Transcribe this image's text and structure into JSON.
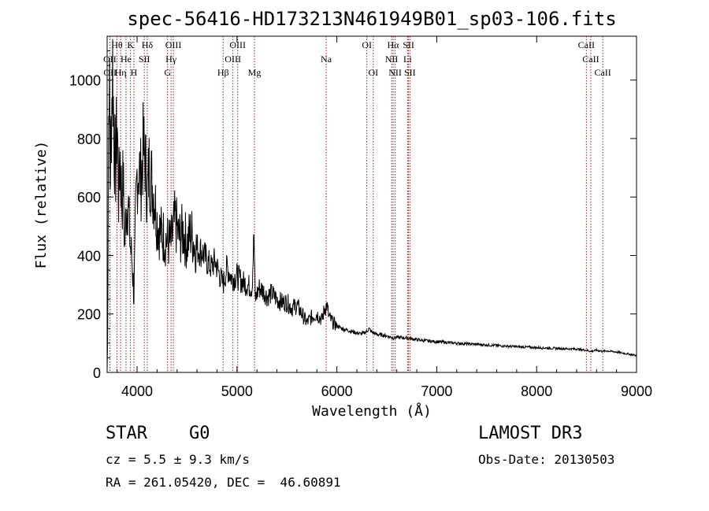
{
  "chart_data": {
    "type": "line",
    "title": "spec-56416-HD173213N461949B01_sp03-106.fits",
    "xlabel": "Wavelength (Å)",
    "ylabel": "Flux (relative)",
    "xlim": [
      3700,
      9000
    ],
    "ylim": [
      0,
      1150
    ],
    "x_ticks": [
      4000,
      5000,
      6000,
      7000,
      8000,
      9000
    ],
    "y_ticks": [
      0,
      200,
      400,
      600,
      800,
      1000
    ],
    "series": [
      {
        "name": "spectrum",
        "points": [
          [
            3700,
            0
          ],
          [
            3705,
            120
          ],
          [
            3712,
            700
          ],
          [
            3720,
            1050
          ],
          [
            3730,
            650
          ],
          [
            3740,
            820
          ],
          [
            3755,
            1060
          ],
          [
            3770,
            780
          ],
          [
            3785,
            700
          ],
          [
            3800,
            870
          ],
          [
            3815,
            600
          ],
          [
            3830,
            740
          ],
          [
            3850,
            560
          ],
          [
            3860,
            680
          ],
          [
            3875,
            420
          ],
          [
            3890,
            560
          ],
          [
            3910,
            590
          ],
          [
            3930,
            440
          ],
          [
            3950,
            380
          ],
          [
            3968,
            260
          ],
          [
            3985,
            520
          ],
          [
            4000,
            680
          ],
          [
            4020,
            700
          ],
          [
            4040,
            660
          ],
          [
            4060,
            760
          ],
          [
            4080,
            740
          ],
          [
            4102,
            600
          ],
          [
            4120,
            700
          ],
          [
            4150,
            650
          ],
          [
            4180,
            580
          ],
          [
            4200,
            520
          ],
          [
            4230,
            480
          ],
          [
            4260,
            470
          ],
          [
            4300,
            450
          ],
          [
            4340,
            440
          ],
          [
            4380,
            520
          ],
          [
            4420,
            460
          ],
          [
            4460,
            480
          ],
          [
            4500,
            440
          ],
          [
            4540,
            480
          ],
          [
            4580,
            430
          ],
          [
            4620,
            420
          ],
          [
            4660,
            410
          ],
          [
            4700,
            380
          ],
          [
            4740,
            360
          ],
          [
            4780,
            380
          ],
          [
            4820,
            340
          ],
          [
            4861,
            300
          ],
          [
            4900,
            360
          ],
          [
            4950,
            320
          ],
          [
            5000,
            330
          ],
          [
            5050,
            310
          ],
          [
            5100,
            300
          ],
          [
            5150,
            290
          ],
          [
            5170,
            470
          ],
          [
            5183,
            250
          ],
          [
            5220,
            290
          ],
          [
            5260,
            280
          ],
          [
            5300,
            260
          ],
          [
            5350,
            270
          ],
          [
            5400,
            250
          ],
          [
            5450,
            240
          ],
          [
            5500,
            240
          ],
          [
            5550,
            220
          ],
          [
            5600,
            230
          ],
          [
            5650,
            200
          ],
          [
            5700,
            170
          ],
          [
            5750,
            190
          ],
          [
            5800,
            200
          ],
          [
            5850,
            180
          ],
          [
            5880,
            220
          ],
          [
            5900,
            230
          ],
          [
            5920,
            190
          ],
          [
            5960,
            170
          ],
          [
            6000,
            160
          ],
          [
            6050,
            150
          ],
          [
            6100,
            145
          ],
          [
            6150,
            140
          ],
          [
            6200,
            135
          ],
          [
            6250,
            132
          ],
          [
            6300,
            140
          ],
          [
            6320,
            150
          ],
          [
            6350,
            138
          ],
          [
            6400,
            130
          ],
          [
            6450,
            128
          ],
          [
            6500,
            125
          ],
          [
            6563,
            118
          ],
          [
            6600,
            120
          ],
          [
            6700,
            118
          ],
          [
            6800,
            112
          ],
          [
            6900,
            108
          ],
          [
            7000,
            105
          ],
          [
            7200,
            100
          ],
          [
            7400,
            96
          ],
          [
            7600,
            92
          ],
          [
            7800,
            88
          ],
          [
            8000,
            85
          ],
          [
            8200,
            82
          ],
          [
            8400,
            80
          ],
          [
            8498,
            76
          ],
          [
            8542,
            72
          ],
          [
            8600,
            76
          ],
          [
            8662,
            72
          ],
          [
            8700,
            74
          ],
          [
            8800,
            70
          ],
          [
            8900,
            64
          ],
          [
            9000,
            58
          ]
        ]
      }
    ],
    "spectral_lines": [
      {
        "name": "Hθ",
        "wavelength": 3798,
        "row": 0
      },
      {
        "name": "K",
        "wavelength": 3934,
        "row": 0
      },
      {
        "name": "Hδ",
        "wavelength": 4102,
        "row": 0
      },
      {
        "name": "OIII",
        "wavelength": 4363,
        "row": 0
      },
      {
        "name": "OIII",
        "wavelength": 5007,
        "row": 0
      },
      {
        "name": "OI",
        "wavelength": 6300,
        "row": 0
      },
      {
        "name": "Hα",
        "wavelength": 6563,
        "row": 0
      },
      {
        "name": "SII",
        "wavelength": 6717,
        "row": 0
      },
      {
        "name": "CaII",
        "wavelength": 8498,
        "row": 0
      },
      {
        "name": "OII",
        "wavelength": 3727,
        "row": 1
      },
      {
        "name": "He",
        "wavelength": 3889,
        "row": 1
      },
      {
        "name": "SII",
        "wavelength": 4072,
        "row": 1
      },
      {
        "name": "Hγ",
        "wavelength": 4340,
        "row": 1
      },
      {
        "name": "OIII",
        "wavelength": 4959,
        "row": 1
      },
      {
        "name": "Na",
        "wavelength": 5893,
        "row": 1
      },
      {
        "name": "NII",
        "wavelength": 6548,
        "row": 1
      },
      {
        "name": "Li",
        "wavelength": 6708,
        "row": 1
      },
      {
        "name": "CaII",
        "wavelength": 8542,
        "row": 1
      },
      {
        "name": "OII",
        "wavelength": 3729,
        "row": 2
      },
      {
        "name": "Hη",
        "wavelength": 3835,
        "row": 2
      },
      {
        "name": "H",
        "wavelength": 3968,
        "row": 2
      },
      {
        "name": "G",
        "wavelength": 4305,
        "row": 2
      },
      {
        "name": "Hβ",
        "wavelength": 4861,
        "row": 2
      },
      {
        "name": "Mg",
        "wavelength": 5175,
        "row": 2
      },
      {
        "name": "OI",
        "wavelength": 6364,
        "row": 2
      },
      {
        "name": "NII",
        "wavelength": 6583,
        "row": 2
      },
      {
        "name": "SII",
        "wavelength": 6731,
        "row": 2
      },
      {
        "name": "CaII",
        "wavelength": 8662,
        "row": 2
      }
    ]
  },
  "info": {
    "class_label": "STAR",
    "subclass": "G0",
    "survey": "LAMOST DR3",
    "redshift": "cz = 5.5 ± 9.3 km/s",
    "obs_date": "Obs-Date: 20130503",
    "coords": "RA = 261.05420, DEC =  46.60891"
  },
  "colors": {
    "spectrum": "#000000",
    "line_markers": "#a02020"
  }
}
